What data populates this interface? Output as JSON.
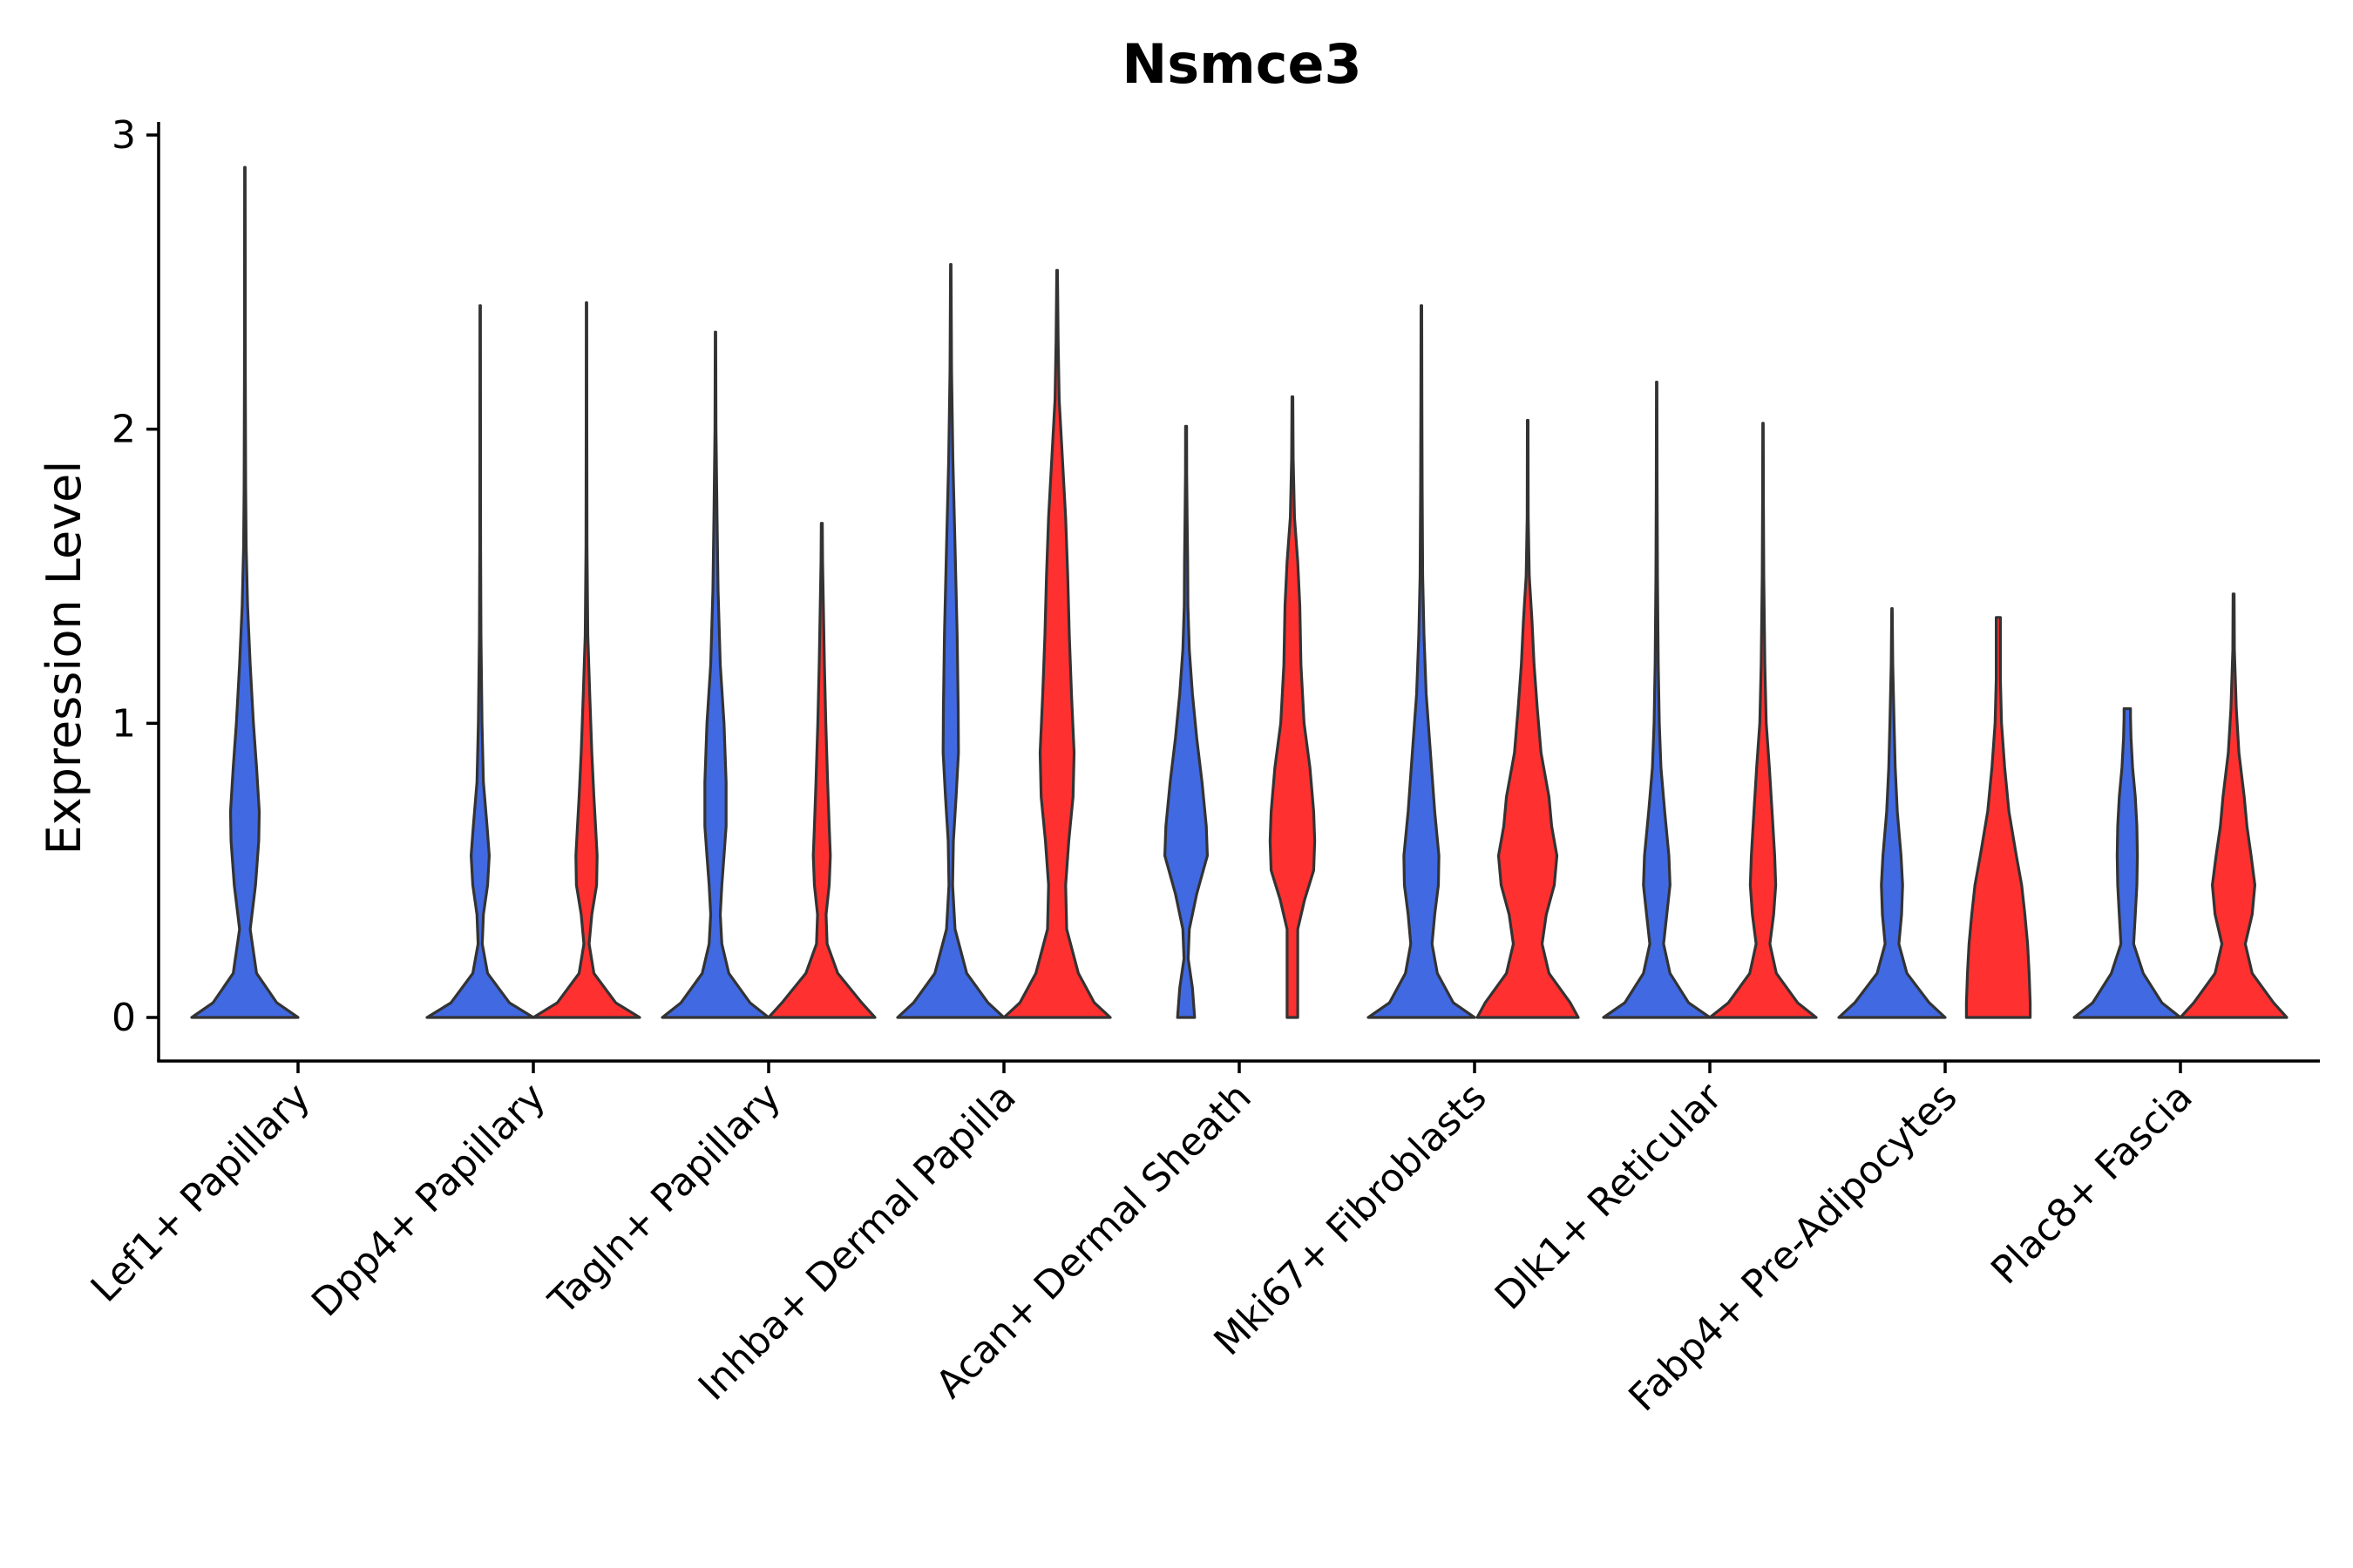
{
  "chart_data": {
    "type": "violin",
    "title": "Nsmce3",
    "xlabel": "",
    "ylabel": "Expression Level",
    "ylim": [
      -0.15,
      3.05
    ],
    "yticks": [
      0,
      1,
      2,
      3
    ],
    "grid": false,
    "legend": "none",
    "colors": {
      "group1": "#4169E1",
      "group2": "#FF3030",
      "outline": "#333333"
    },
    "categories": [
      "Lef1+ Papillary",
      "Dpp4+ Papillary",
      "Tagln+ Papillary",
      "Inhba+ Dermal Papilla",
      "Acan+ Dermal Sheath",
      "Mki67+ Fibroblasts",
      "Dlk1+ Reticular",
      "Fabp4+ Pre-Adipocytes",
      "Plac8+ Fascia"
    ],
    "violins": [
      {
        "category": "Lef1+ Papillary",
        "group": "group1",
        "max": 2.89,
        "profile": [
          [
            0,
            1.0
          ],
          [
            0.05,
            0.6
          ],
          [
            0.15,
            0.22
          ],
          [
            0.3,
            0.1
          ],
          [
            0.45,
            0.2
          ],
          [
            0.6,
            0.26
          ],
          [
            0.7,
            0.27
          ],
          [
            0.85,
            0.22
          ],
          [
            1.0,
            0.16
          ],
          [
            1.2,
            0.1
          ],
          [
            1.4,
            0.05
          ],
          [
            1.6,
            0.025
          ],
          [
            1.8,
            0.015
          ],
          [
            2.2,
            0.008
          ],
          [
            2.6,
            0.006
          ],
          [
            2.89,
            0.005
          ]
        ]
      },
      {
        "category": "Dpp4+ Papillary",
        "group": "group1",
        "max": 2.42,
        "profile": [
          [
            0,
            1.0
          ],
          [
            0.05,
            0.55
          ],
          [
            0.15,
            0.14
          ],
          [
            0.25,
            0.04
          ],
          [
            0.35,
            0.06
          ],
          [
            0.45,
            0.14
          ],
          [
            0.55,
            0.17
          ],
          [
            0.65,
            0.13
          ],
          [
            0.8,
            0.06
          ],
          [
            1.0,
            0.035
          ],
          [
            1.3,
            0.015
          ],
          [
            1.6,
            0.008
          ],
          [
            2.0,
            0.006
          ],
          [
            2.42,
            0.005
          ]
        ]
      },
      {
        "category": "Dpp4+ Papillary",
        "group": "group2",
        "max": 2.43,
        "profile": [
          [
            0,
            1.0
          ],
          [
            0.05,
            0.55
          ],
          [
            0.15,
            0.14
          ],
          [
            0.25,
            0.05
          ],
          [
            0.35,
            0.1
          ],
          [
            0.45,
            0.19
          ],
          [
            0.55,
            0.2
          ],
          [
            0.65,
            0.17
          ],
          [
            0.75,
            0.14
          ],
          [
            0.9,
            0.1
          ],
          [
            1.1,
            0.06
          ],
          [
            1.3,
            0.025
          ],
          [
            1.6,
            0.01
          ],
          [
            2.0,
            0.006
          ],
          [
            2.43,
            0.005
          ]
        ]
      },
      {
        "category": "Tagln+ Papillary",
        "group": "group1",
        "max": 2.33,
        "profile": [
          [
            0,
            1.0
          ],
          [
            0.05,
            0.65
          ],
          [
            0.15,
            0.25
          ],
          [
            0.25,
            0.12
          ],
          [
            0.35,
            0.09
          ],
          [
            0.45,
            0.12
          ],
          [
            0.55,
            0.16
          ],
          [
            0.65,
            0.2
          ],
          [
            0.8,
            0.2
          ],
          [
            1.0,
            0.16
          ],
          [
            1.2,
            0.09
          ],
          [
            1.45,
            0.05
          ],
          [
            1.7,
            0.03
          ],
          [
            2.0,
            0.01
          ],
          [
            2.33,
            0.005
          ]
        ]
      },
      {
        "category": "Tagln+ Papillary",
        "group": "group2",
        "max": 1.68,
        "profile": [
          [
            0,
            1.0
          ],
          [
            0.05,
            0.75
          ],
          [
            0.15,
            0.3
          ],
          [
            0.25,
            0.1
          ],
          [
            0.35,
            0.08
          ],
          [
            0.45,
            0.14
          ],
          [
            0.55,
            0.16
          ],
          [
            0.65,
            0.14
          ],
          [
            0.8,
            0.11
          ],
          [
            1.0,
            0.075
          ],
          [
            1.2,
            0.05
          ],
          [
            1.4,
            0.03
          ],
          [
            1.55,
            0.015
          ],
          [
            1.68,
            0.01
          ]
        ]
      },
      {
        "category": "Inhba+ Dermal Papilla",
        "group": "group1",
        "max": 2.56,
        "profile": [
          [
            0,
            1.0
          ],
          [
            0.05,
            0.7
          ],
          [
            0.15,
            0.3
          ],
          [
            0.3,
            0.08
          ],
          [
            0.45,
            0.035
          ],
          [
            0.6,
            0.05
          ],
          [
            0.75,
            0.1
          ],
          [
            0.9,
            0.145
          ],
          [
            1.05,
            0.14
          ],
          [
            1.3,
            0.12
          ],
          [
            1.6,
            0.08
          ],
          [
            1.9,
            0.04
          ],
          [
            2.2,
            0.015
          ],
          [
            2.56,
            0.005
          ]
        ]
      },
      {
        "category": "Inhba+ Dermal Papilla",
        "group": "group2",
        "max": 2.54,
        "profile": [
          [
            0,
            1.0
          ],
          [
            0.05,
            0.7
          ],
          [
            0.15,
            0.4
          ],
          [
            0.3,
            0.18
          ],
          [
            0.45,
            0.16
          ],
          [
            0.6,
            0.22
          ],
          [
            0.75,
            0.3
          ],
          [
            0.9,
            0.32
          ],
          [
            1.1,
            0.27
          ],
          [
            1.3,
            0.23
          ],
          [
            1.5,
            0.2
          ],
          [
            1.7,
            0.16
          ],
          [
            1.9,
            0.1
          ],
          [
            2.1,
            0.04
          ],
          [
            2.3,
            0.02
          ],
          [
            2.54,
            0.006
          ]
        ]
      },
      {
        "category": "Acan+ Dermal Sheath",
        "group": "group1",
        "max": 2.01,
        "profile": [
          [
            0,
            0.16
          ],
          [
            0.1,
            0.12
          ],
          [
            0.2,
            0.04
          ],
          [
            0.3,
            0.06
          ],
          [
            0.42,
            0.2
          ],
          [
            0.55,
            0.4
          ],
          [
            0.65,
            0.38
          ],
          [
            0.8,
            0.3
          ],
          [
            0.95,
            0.2
          ],
          [
            1.1,
            0.12
          ],
          [
            1.25,
            0.06
          ],
          [
            1.4,
            0.035
          ],
          [
            1.55,
            0.03
          ],
          [
            1.7,
            0.02
          ],
          [
            1.85,
            0.012
          ],
          [
            2.01,
            0.01
          ]
        ]
      },
      {
        "category": "Acan+ Dermal Sheath",
        "group": "group2",
        "max": 2.11,
        "profile": [
          [
            0,
            0.1
          ],
          [
            0.1,
            0.1
          ],
          [
            0.2,
            0.1
          ],
          [
            0.3,
            0.1
          ],
          [
            0.4,
            0.23
          ],
          [
            0.5,
            0.4
          ],
          [
            0.6,
            0.42
          ],
          [
            0.7,
            0.4
          ],
          [
            0.85,
            0.33
          ],
          [
            1.0,
            0.22
          ],
          [
            1.2,
            0.16
          ],
          [
            1.4,
            0.14
          ],
          [
            1.55,
            0.1
          ],
          [
            1.7,
            0.04
          ],
          [
            1.9,
            0.015
          ],
          [
            2.11,
            0.008
          ]
        ]
      },
      {
        "category": "Mki67+ Fibroblasts",
        "group": "group1",
        "max": 2.42,
        "profile": [
          [
            0,
            1.0
          ],
          [
            0.05,
            0.6
          ],
          [
            0.15,
            0.3
          ],
          [
            0.25,
            0.2
          ],
          [
            0.35,
            0.25
          ],
          [
            0.45,
            0.32
          ],
          [
            0.55,
            0.33
          ],
          [
            0.7,
            0.25
          ],
          [
            0.9,
            0.17
          ],
          [
            1.1,
            0.09
          ],
          [
            1.3,
            0.05
          ],
          [
            1.5,
            0.025
          ],
          [
            1.8,
            0.015
          ],
          [
            2.1,
            0.01
          ],
          [
            2.42,
            0.006
          ]
        ]
      },
      {
        "category": "Mki67+ Fibroblasts",
        "group": "group2",
        "max": 2.03,
        "profile": [
          [
            0,
            0.95
          ],
          [
            0.05,
            0.8
          ],
          [
            0.15,
            0.4
          ],
          [
            0.25,
            0.27
          ],
          [
            0.35,
            0.35
          ],
          [
            0.45,
            0.5
          ],
          [
            0.55,
            0.55
          ],
          [
            0.65,
            0.45
          ],
          [
            0.75,
            0.4
          ],
          [
            0.9,
            0.25
          ],
          [
            1.05,
            0.18
          ],
          [
            1.2,
            0.12
          ],
          [
            1.35,
            0.08
          ],
          [
            1.5,
            0.03
          ],
          [
            1.7,
            0.01
          ],
          [
            2.03,
            0.006
          ]
        ]
      },
      {
        "category": "Dlk1+ Reticular",
        "group": "group1",
        "max": 2.16,
        "profile": [
          [
            0,
            1.0
          ],
          [
            0.05,
            0.6
          ],
          [
            0.15,
            0.25
          ],
          [
            0.25,
            0.13
          ],
          [
            0.35,
            0.19
          ],
          [
            0.45,
            0.25
          ],
          [
            0.55,
            0.23
          ],
          [
            0.7,
            0.15
          ],
          [
            0.85,
            0.08
          ],
          [
            1.0,
            0.05
          ],
          [
            1.2,
            0.03
          ],
          [
            1.5,
            0.015
          ],
          [
            1.8,
            0.008
          ],
          [
            2.16,
            0.005
          ]
        ]
      },
      {
        "category": "Dlk1+ Reticular",
        "group": "group2",
        "max": 2.02,
        "profile": [
          [
            0,
            1.0
          ],
          [
            0.05,
            0.65
          ],
          [
            0.15,
            0.25
          ],
          [
            0.25,
            0.13
          ],
          [
            0.35,
            0.2
          ],
          [
            0.45,
            0.24
          ],
          [
            0.55,
            0.22
          ],
          [
            0.7,
            0.17
          ],
          [
            0.85,
            0.12
          ],
          [
            1.0,
            0.06
          ],
          [
            1.2,
            0.035
          ],
          [
            1.5,
            0.015
          ],
          [
            1.75,
            0.008
          ],
          [
            2.02,
            0.005
          ]
        ]
      },
      {
        "category": "Fabp4+ Pre-Adipocytes",
        "group": "group1",
        "max": 1.39,
        "profile": [
          [
            0,
            1.0
          ],
          [
            0.05,
            0.7
          ],
          [
            0.15,
            0.28
          ],
          [
            0.25,
            0.13
          ],
          [
            0.35,
            0.18
          ],
          [
            0.45,
            0.2
          ],
          [
            0.55,
            0.17
          ],
          [
            0.7,
            0.1
          ],
          [
            0.85,
            0.06
          ],
          [
            1.0,
            0.04
          ],
          [
            1.2,
            0.015
          ],
          [
            1.39,
            0.005
          ]
        ]
      },
      {
        "category": "Fabp4+ Pre-Adipocytes",
        "group": "group2",
        "max": 1.36,
        "profile": [
          [
            0,
            0.6
          ],
          [
            0.05,
            0.6
          ],
          [
            0.15,
            0.58
          ],
          [
            0.25,
            0.55
          ],
          [
            0.35,
            0.5
          ],
          [
            0.45,
            0.44
          ],
          [
            0.55,
            0.34
          ],
          [
            0.7,
            0.2
          ],
          [
            0.85,
            0.12
          ],
          [
            1.0,
            0.06
          ],
          [
            1.15,
            0.04
          ],
          [
            1.3,
            0.04
          ],
          [
            1.36,
            0.04
          ]
        ]
      },
      {
        "category": "Plac8+ Fascia",
        "group": "group1",
        "max": 1.05,
        "profile": [
          [
            0,
            1.0
          ],
          [
            0.05,
            0.65
          ],
          [
            0.15,
            0.3
          ],
          [
            0.25,
            0.12
          ],
          [
            0.35,
            0.15
          ],
          [
            0.45,
            0.18
          ],
          [
            0.55,
            0.19
          ],
          [
            0.65,
            0.18
          ],
          [
            0.75,
            0.15
          ],
          [
            0.85,
            0.1
          ],
          [
            0.95,
            0.07
          ],
          [
            1.02,
            0.06
          ],
          [
            1.05,
            0.06
          ]
        ]
      },
      {
        "category": "Plac8+ Fascia",
        "group": "group2",
        "max": 1.44,
        "profile": [
          [
            0,
            1.0
          ],
          [
            0.05,
            0.75
          ],
          [
            0.15,
            0.35
          ],
          [
            0.25,
            0.22
          ],
          [
            0.35,
            0.35
          ],
          [
            0.45,
            0.4
          ],
          [
            0.55,
            0.33
          ],
          [
            0.65,
            0.25
          ],
          [
            0.75,
            0.2
          ],
          [
            0.9,
            0.1
          ],
          [
            1.05,
            0.05
          ],
          [
            1.25,
            0.015
          ],
          [
            1.44,
            0.01
          ]
        ]
      }
    ]
  }
}
